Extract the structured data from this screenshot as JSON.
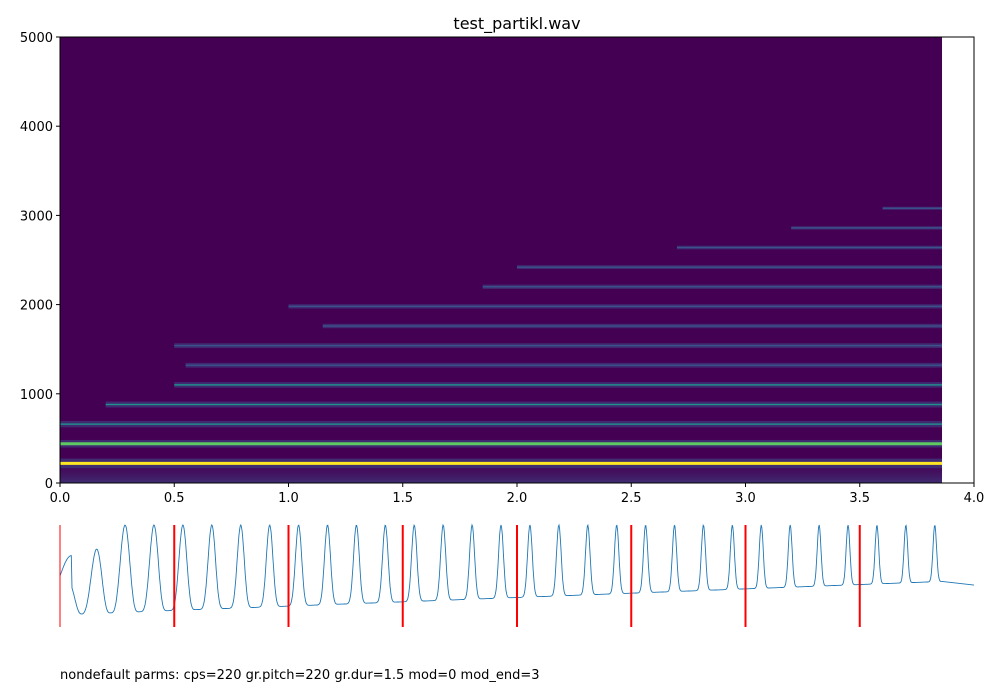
{
  "footer_note": "nondefault parms: cps=220 gr.pitch=220 gr.dur=1.5 mod=0 mod_end=3",
  "chart_data": [
    {
      "type": "heatmap",
      "kind": "spectrogram",
      "title": "test_partikl.wav",
      "xlabel": "",
      "ylabel": "",
      "xlim": [
        0.0,
        4.0
      ],
      "ylim": [
        0,
        5000
      ],
      "x_ticks": [
        0.0,
        0.5,
        1.0,
        1.5,
        2.0,
        2.5,
        3.0,
        3.5,
        4.0
      ],
      "x_tick_labels": [
        "0.0",
        "0.5",
        "1.0",
        "1.5",
        "2.0",
        "2.5",
        "3.0",
        "3.5",
        "4.0"
      ],
      "y_ticks": [
        0,
        1000,
        2000,
        3000,
        4000,
        5000
      ],
      "y_tick_labels": [
        "0",
        "1000",
        "2000",
        "3000",
        "4000",
        "5000"
      ],
      "signal_end_time": 3.86,
      "colormap": [
        "#440154",
        "#3b528b",
        "#21918c",
        "#5ec962",
        "#fde725"
      ],
      "background_color": "#440154",
      "partials": [
        {
          "freq": 220,
          "start": 0.0,
          "intensity": 0.95
        },
        {
          "freq": 440,
          "start": 0.0,
          "intensity": 0.7
        },
        {
          "freq": 660,
          "start": 0.0,
          "intensity": 0.55
        },
        {
          "freq": 880,
          "start": 0.2,
          "intensity": 0.5
        },
        {
          "freq": 1100,
          "start": 0.5,
          "intensity": 0.45
        },
        {
          "freq": 1320,
          "start": 0.55,
          "intensity": 0.35
        },
        {
          "freq": 1540,
          "start": 0.5,
          "intensity": 0.35
        },
        {
          "freq": 1760,
          "start": 1.15,
          "intensity": 0.3
        },
        {
          "freq": 1980,
          "start": 1.0,
          "intensity": 0.28
        },
        {
          "freq": 2200,
          "start": 1.85,
          "intensity": 0.28
        },
        {
          "freq": 2420,
          "start": 2.0,
          "intensity": 0.22
        },
        {
          "freq": 2640,
          "start": 2.7,
          "intensity": 0.2
        },
        {
          "freq": 2860,
          "start": 3.2,
          "intensity": 0.16
        },
        {
          "freq": 3080,
          "start": 3.6,
          "intensity": 0.12
        }
      ]
    },
    {
      "type": "line",
      "kind": "waveform",
      "xlim": [
        0.0,
        4.0
      ],
      "axes_visible": false,
      "line_color": "#1f77b4",
      "marker_color": "#ff0000",
      "marker_times": [
        0.0,
        0.5,
        1.0,
        1.5,
        2.0,
        2.5,
        3.0,
        3.5
      ],
      "peak_count": 31,
      "signal_end_time": 3.86
    }
  ]
}
